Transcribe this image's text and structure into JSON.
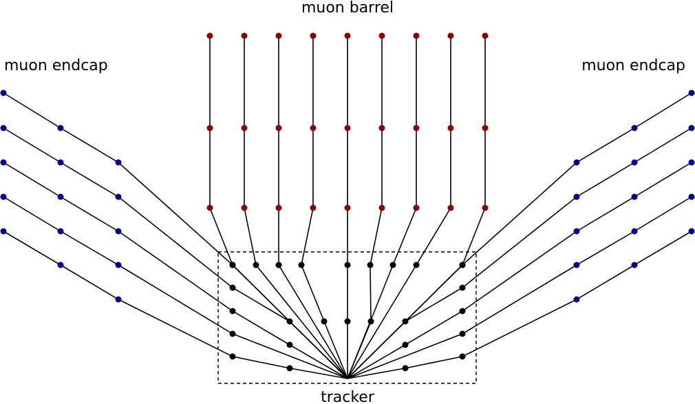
{
  "labels": {
    "top": "muon barrel",
    "left": "muon endcap",
    "right": "muon endcap",
    "bottom": "tracker"
  },
  "colors": {
    "barrel": "#8b0000",
    "endcap": "#00008b",
    "tracker": "#000000",
    "line": "#000000"
  }
}
